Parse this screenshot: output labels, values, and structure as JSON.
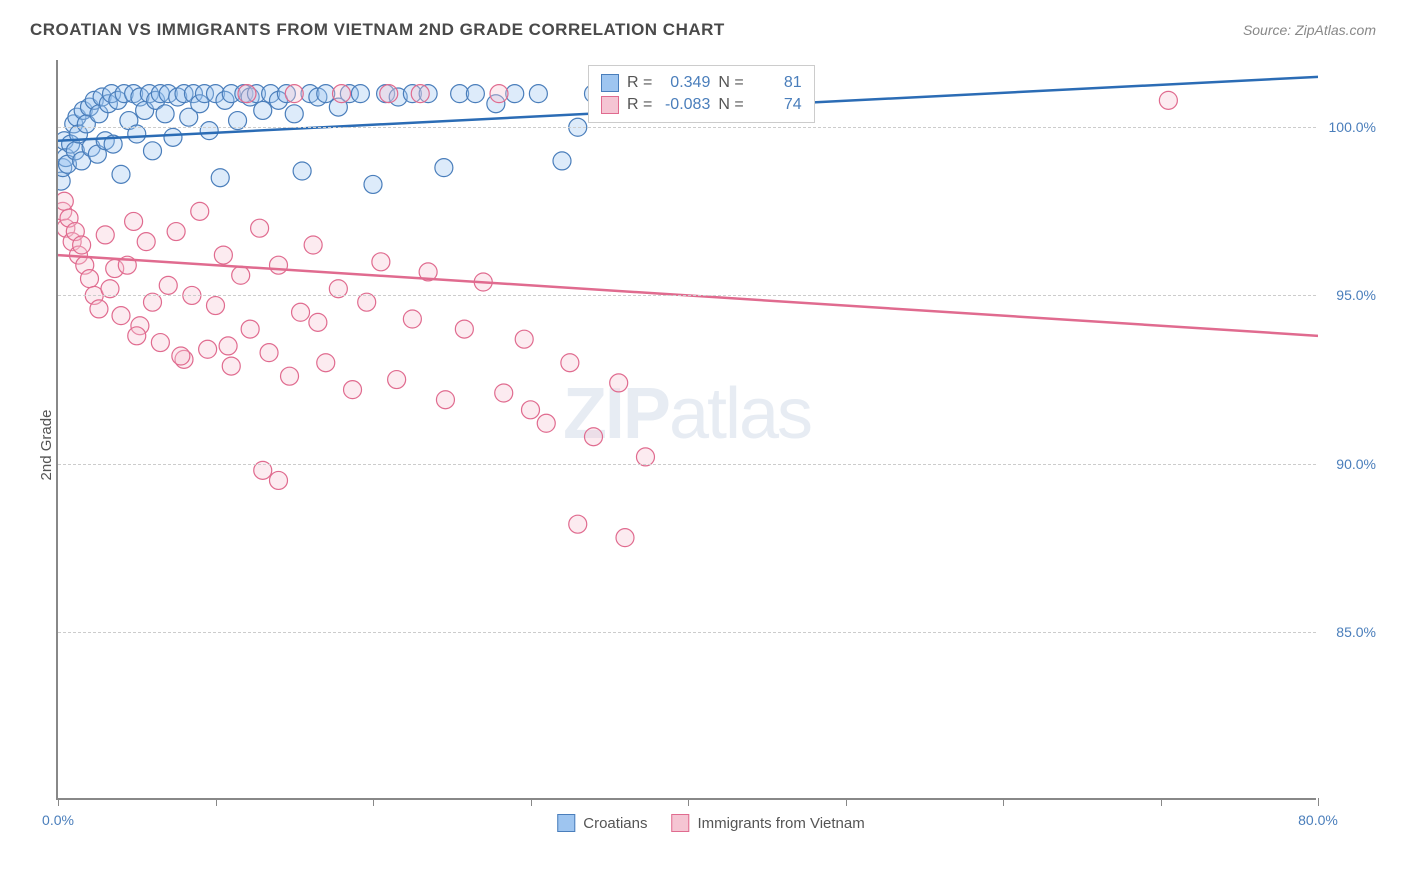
{
  "title": "CROATIAN VS IMMIGRANTS FROM VIETNAM 2ND GRADE CORRELATION CHART",
  "source": "Source: ZipAtlas.com",
  "watermark_a": "ZIP",
  "watermark_b": "atlas",
  "chart": {
    "type": "scatter",
    "ylabel": "2nd Grade",
    "xlim": [
      0,
      80
    ],
    "ylim": [
      80,
      102
    ],
    "yticks": [
      85,
      90,
      95,
      100
    ],
    "ytick_labels": [
      "85.0%",
      "90.0%",
      "95.0%",
      "100.0%"
    ],
    "xticks": [
      0,
      10,
      20,
      30,
      40,
      50,
      60,
      70,
      80
    ],
    "xtick_labels_shown": {
      "0": "0.0%",
      "80": "80.0%"
    },
    "background_color": "#ffffff",
    "grid_color": "#cccccc",
    "axis_color": "#888888",
    "marker_radius": 9,
    "marker_fill_opacity": 0.35,
    "marker_stroke_width": 1.2,
    "line_width": 2.5,
    "series": [
      {
        "name": "Croatians",
        "color_fill": "#9ec5f0",
        "color_stroke": "#4a7ebb",
        "line_color": "#2b6cb5",
        "R": "0.349",
        "N": "81",
        "trend": {
          "x1": 0,
          "y1": 99.6,
          "x2": 80,
          "y2": 101.5
        },
        "points": [
          [
            0.2,
            98.4
          ],
          [
            0.3,
            98.8
          ],
          [
            0.4,
            99.6
          ],
          [
            0.5,
            99.1
          ],
          [
            0.6,
            98.9
          ],
          [
            0.8,
            99.5
          ],
          [
            1.0,
            100.1
          ],
          [
            1.1,
            99.3
          ],
          [
            1.2,
            100.3
          ],
          [
            1.3,
            99.8
          ],
          [
            1.5,
            99.0
          ],
          [
            1.6,
            100.5
          ],
          [
            1.8,
            100.1
          ],
          [
            2.0,
            100.6
          ],
          [
            2.1,
            99.4
          ],
          [
            2.3,
            100.8
          ],
          [
            2.5,
            99.2
          ],
          [
            2.6,
            100.4
          ],
          [
            2.8,
            100.9
          ],
          [
            3.0,
            99.6
          ],
          [
            3.2,
            100.7
          ],
          [
            3.4,
            101.0
          ],
          [
            3.5,
            99.5
          ],
          [
            3.8,
            100.8
          ],
          [
            4.0,
            98.6
          ],
          [
            4.2,
            101.0
          ],
          [
            4.5,
            100.2
          ],
          [
            4.8,
            101.0
          ],
          [
            5.0,
            99.8
          ],
          [
            5.2,
            100.9
          ],
          [
            5.5,
            100.5
          ],
          [
            5.8,
            101.0
          ],
          [
            6.0,
            99.3
          ],
          [
            6.2,
            100.8
          ],
          [
            6.5,
            101.0
          ],
          [
            6.8,
            100.4
          ],
          [
            7.0,
            101.0
          ],
          [
            7.3,
            99.7
          ],
          [
            7.6,
            100.9
          ],
          [
            8.0,
            101.0
          ],
          [
            8.3,
            100.3
          ],
          [
            8.6,
            101.0
          ],
          [
            9.0,
            100.7
          ],
          [
            9.3,
            101.0
          ],
          [
            9.6,
            99.9
          ],
          [
            10.0,
            101.0
          ],
          [
            10.3,
            98.5
          ],
          [
            10.6,
            100.8
          ],
          [
            11.0,
            101.0
          ],
          [
            11.4,
            100.2
          ],
          [
            11.8,
            101.0
          ],
          [
            12.2,
            100.9
          ],
          [
            12.6,
            101.0
          ],
          [
            13.0,
            100.5
          ],
          [
            13.5,
            101.0
          ],
          [
            14.0,
            100.8
          ],
          [
            14.5,
            101.0
          ],
          [
            15.0,
            100.4
          ],
          [
            15.5,
            98.7
          ],
          [
            16.0,
            101.0
          ],
          [
            16.5,
            100.9
          ],
          [
            17.0,
            101.0
          ],
          [
            17.8,
            100.6
          ],
          [
            18.5,
            101.0
          ],
          [
            19.2,
            101.0
          ],
          [
            20.0,
            98.3
          ],
          [
            20.8,
            101.0
          ],
          [
            21.6,
            100.9
          ],
          [
            22.5,
            101.0
          ],
          [
            23.5,
            101.0
          ],
          [
            24.5,
            98.8
          ],
          [
            25.5,
            101.0
          ],
          [
            26.5,
            101.0
          ],
          [
            27.8,
            100.7
          ],
          [
            29.0,
            101.0
          ],
          [
            30.5,
            101.0
          ],
          [
            32.0,
            99.0
          ],
          [
            34.0,
            101.0
          ],
          [
            36.0,
            101.0
          ],
          [
            38.0,
            101.0
          ],
          [
            33.0,
            100.0
          ]
        ]
      },
      {
        "name": "Immigrants from Vietnam",
        "color_fill": "#f5c5d3",
        "color_stroke": "#e06b8f",
        "line_color": "#e06b8f",
        "R": "-0.083",
        "N": "74",
        "trend": {
          "x1": 0,
          "y1": 96.2,
          "x2": 80,
          "y2": 93.8
        },
        "points": [
          [
            0.3,
            97.5
          ],
          [
            0.4,
            97.8
          ],
          [
            0.5,
            97.0
          ],
          [
            0.7,
            97.3
          ],
          [
            0.9,
            96.6
          ],
          [
            1.1,
            96.9
          ],
          [
            1.3,
            96.2
          ],
          [
            1.5,
            96.5
          ],
          [
            1.7,
            95.9
          ],
          [
            2.0,
            95.5
          ],
          [
            2.3,
            95.0
          ],
          [
            2.6,
            94.6
          ],
          [
            3.0,
            96.8
          ],
          [
            3.3,
            95.2
          ],
          [
            3.6,
            95.8
          ],
          [
            4.0,
            94.4
          ],
          [
            4.4,
            95.9
          ],
          [
            4.8,
            97.2
          ],
          [
            5.2,
            94.1
          ],
          [
            5.6,
            96.6
          ],
          [
            6.0,
            94.8
          ],
          [
            6.5,
            93.6
          ],
          [
            7.0,
            95.3
          ],
          [
            7.5,
            96.9
          ],
          [
            8.0,
            93.1
          ],
          [
            8.5,
            95.0
          ],
          [
            9.0,
            97.5
          ],
          [
            9.5,
            93.4
          ],
          [
            10.0,
            94.7
          ],
          [
            10.5,
            96.2
          ],
          [
            11.0,
            92.9
          ],
          [
            11.6,
            95.6
          ],
          [
            12.2,
            94.0
          ],
          [
            12.8,
            97.0
          ],
          [
            13.4,
            93.3
          ],
          [
            14.0,
            95.9
          ],
          [
            14.7,
            92.6
          ],
          [
            15.4,
            94.5
          ],
          [
            16.2,
            96.5
          ],
          [
            17.0,
            93.0
          ],
          [
            17.8,
            95.2
          ],
          [
            18.7,
            92.2
          ],
          [
            19.6,
            94.8
          ],
          [
            20.5,
            96.0
          ],
          [
            21.5,
            92.5
          ],
          [
            22.5,
            94.3
          ],
          [
            23.5,
            95.7
          ],
          [
            24.6,
            91.9
          ],
          [
            25.8,
            94.0
          ],
          [
            27.0,
            95.4
          ],
          [
            28.3,
            92.1
          ],
          [
            29.6,
            93.7
          ],
          [
            31.0,
            91.2
          ],
          [
            32.5,
            93.0
          ],
          [
            34.0,
            90.8
          ],
          [
            35.6,
            92.4
          ],
          [
            37.3,
            90.2
          ],
          [
            36.0,
            87.8
          ],
          [
            33.0,
            88.2
          ],
          [
            30.0,
            91.6
          ],
          [
            5.0,
            93.8
          ],
          [
            7.8,
            93.2
          ],
          [
            10.8,
            93.5
          ],
          [
            13.0,
            89.8
          ],
          [
            14.0,
            89.5
          ],
          [
            16.5,
            94.2
          ],
          [
            23.0,
            101.0
          ],
          [
            28.0,
            101.0
          ],
          [
            12.0,
            101.0
          ],
          [
            15.0,
            101.0
          ],
          [
            18.0,
            101.0
          ],
          [
            21.0,
            101.0
          ],
          [
            70.5,
            100.8
          ],
          [
            35.0,
            101.0
          ]
        ]
      }
    ]
  },
  "legend": {
    "r_label": "R =",
    "n_label": "N ="
  }
}
